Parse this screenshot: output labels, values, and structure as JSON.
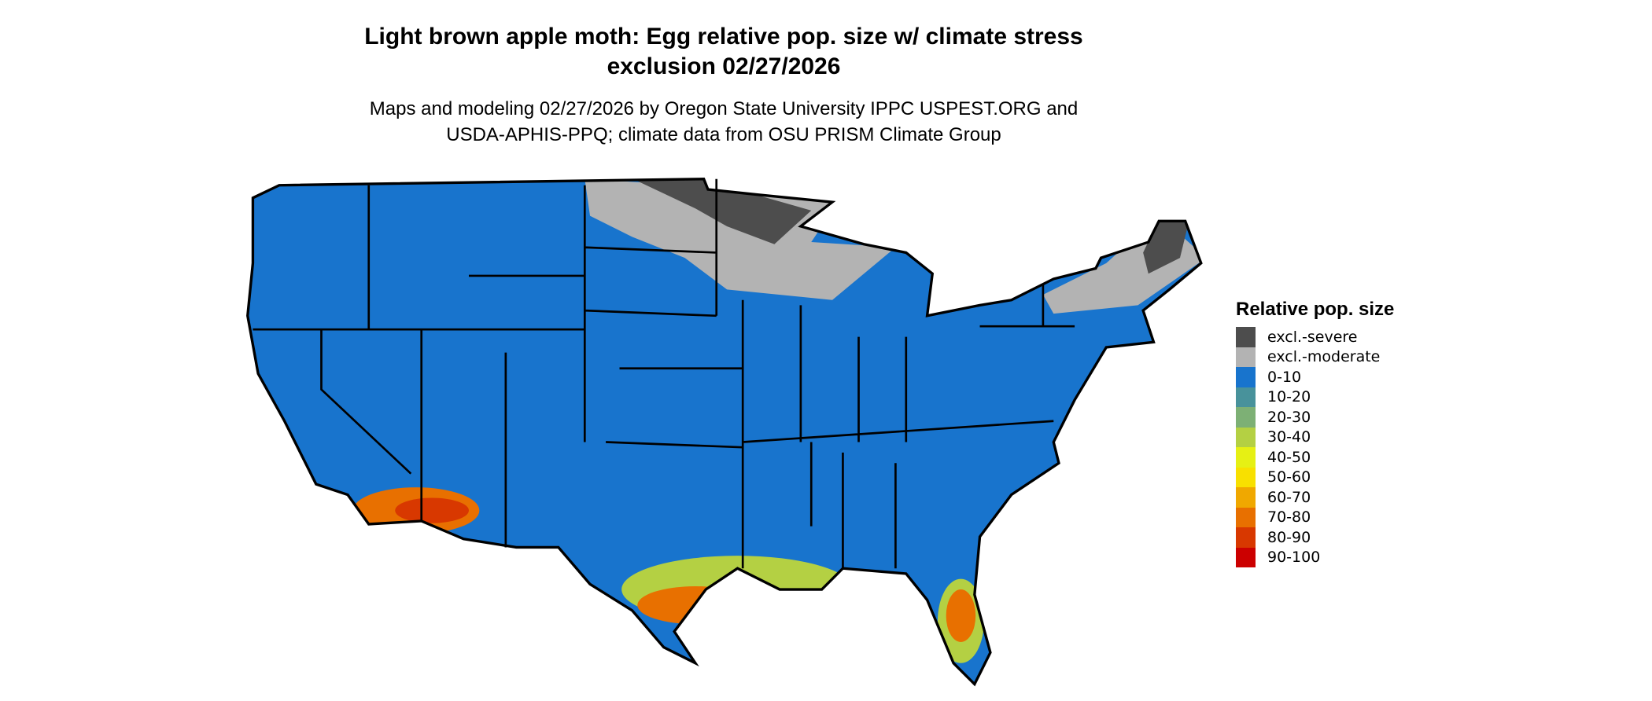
{
  "title_line1": "Light brown apple moth: Egg relative pop. size w/ climate stress",
  "title_line2": "exclusion 02/27/2026",
  "subtitle_line1": "Maps and modeling 02/27/2026 by Oregon State University IPPC USPEST.ORG and",
  "subtitle_line2": "USDA-APHIS-PPQ; climate data from OSU PRISM Climate Group",
  "legend": {
    "title": "Relative pop. size",
    "items": [
      {
        "label": "excl.-severe",
        "color": "#4d4d4d"
      },
      {
        "label": "excl.-moderate",
        "color": "#b3b3b3"
      },
      {
        "label": "0-10",
        "color": "#1874cd"
      },
      {
        "label": "10-20",
        "color": "#48929b"
      },
      {
        "label": "20-30",
        "color": "#7db075"
      },
      {
        "label": "30-40",
        "color": "#b4d043"
      },
      {
        "label": "40-50",
        "color": "#e6f014"
      },
      {
        "label": "50-60",
        "color": "#f8e000"
      },
      {
        "label": "60-70",
        "color": "#f0a800"
      },
      {
        "label": "70-80",
        "color": "#e87000"
      },
      {
        "label": "80-90",
        "color": "#d83800"
      },
      {
        "label": "90-100",
        "color": "#cc0000"
      }
    ]
  }
}
